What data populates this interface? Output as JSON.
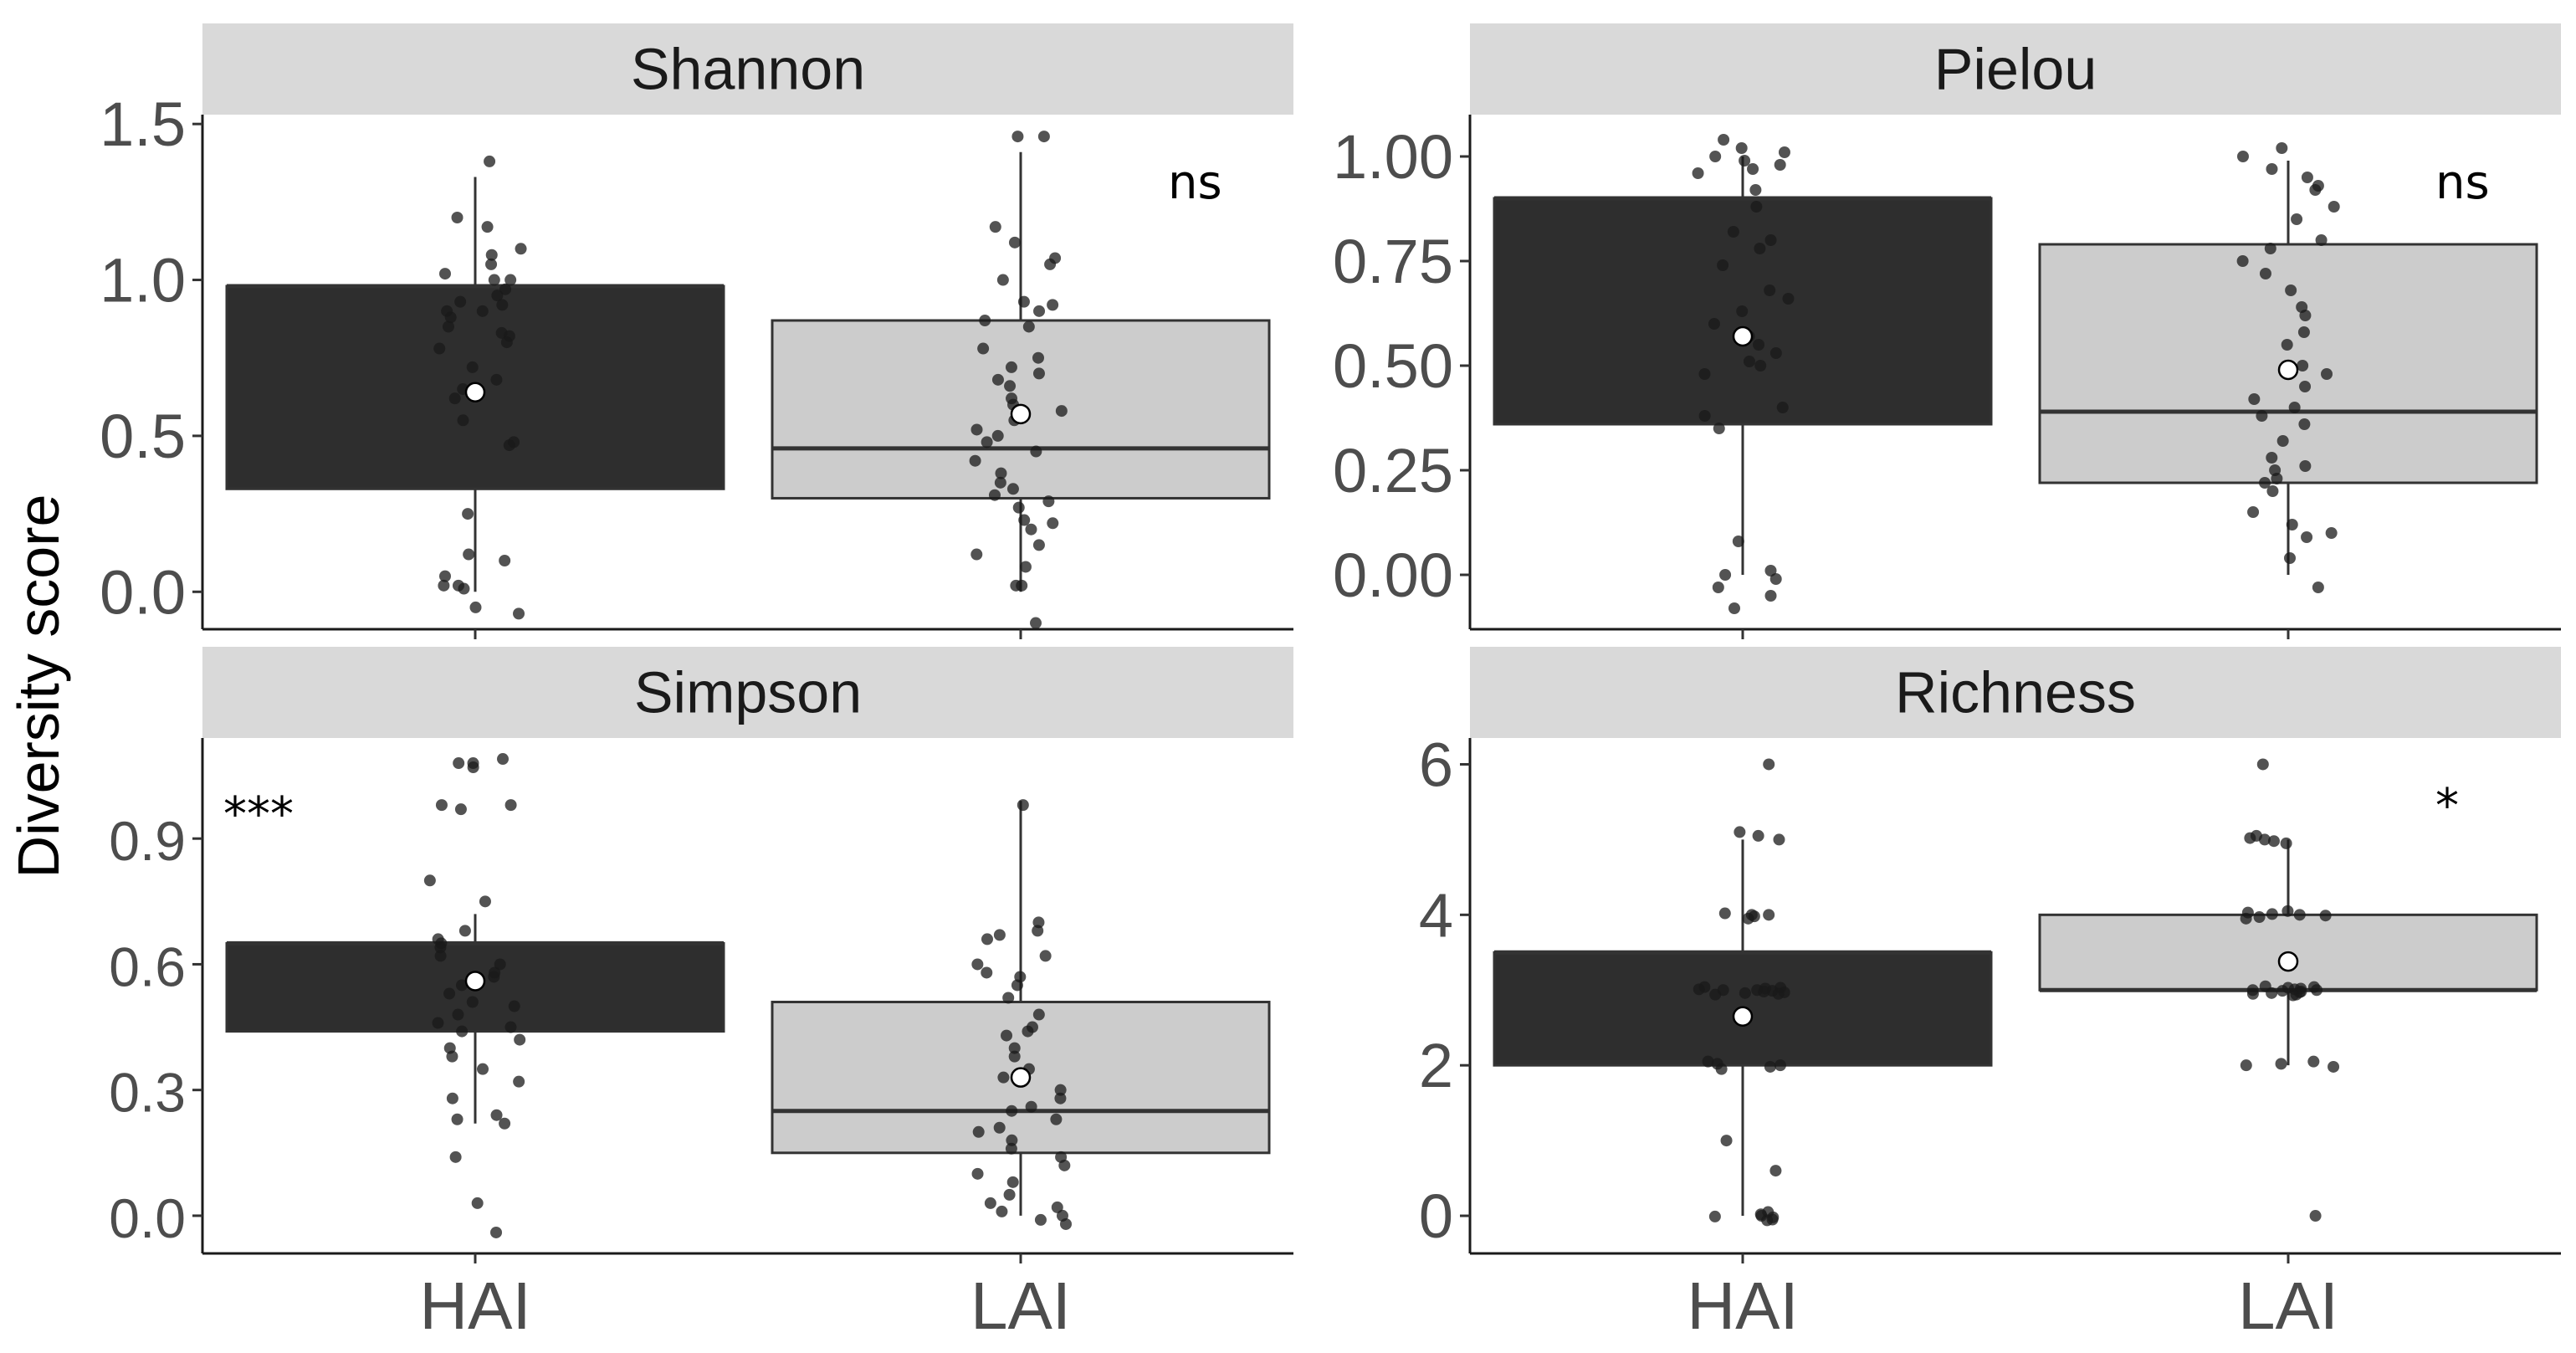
{
  "chart_data": {
    "type": "boxplot",
    "y_axis_title": "Diversity score",
    "groups": [
      "HAI",
      "LAI"
    ],
    "colors": {
      "HAI_fill": "#2e2e2e",
      "LAI_fill": "#cccccc",
      "strip_fill": "#d9d9d9",
      "point": "#1a1a1a",
      "mean_marker": "#ffffff",
      "axis_text": "#4d4d4d"
    },
    "panels": [
      {
        "title": "Shannon",
        "significance": "ns",
        "significance_position": "top-right",
        "ylim": [
          -0.12,
          1.53
        ],
        "ticks": [
          0.0,
          0.5,
          1.0,
          1.5
        ],
        "tick_labels": [
          "0.0",
          "0.5",
          "1.0",
          "1.5"
        ],
        "boxes": [
          {
            "group": "HAI",
            "q1": 0.33,
            "median": 0.98,
            "q3": 0.98,
            "whisker_low": 0.0,
            "whisker_high": 1.33,
            "mean": 0.64,
            "points": [
              1.38,
              1.2,
              1.17,
              1.1,
              1.08,
              1.05,
              1.02,
              1.0,
              1.0,
              0.97,
              0.95,
              0.93,
              0.92,
              0.9,
              0.9,
              0.88,
              0.85,
              0.83,
              0.82,
              0.8,
              0.78,
              0.72,
              0.68,
              0.65,
              0.62,
              0.55,
              0.48,
              0.47,
              0.25,
              0.12,
              0.1,
              0.05,
              0.02,
              0.02,
              0.01,
              -0.05,
              -0.07
            ]
          },
          {
            "group": "LAI",
            "q1": 0.3,
            "median": 0.46,
            "q3": 0.87,
            "whisker_low": 0.0,
            "whisker_high": 1.41,
            "mean": 0.57,
            "points": [
              1.46,
              1.46,
              1.17,
              1.12,
              1.07,
              1.05,
              1.0,
              0.93,
              0.92,
              0.9,
              0.87,
              0.85,
              0.78,
              0.75,
              0.72,
              0.7,
              0.68,
              0.66,
              0.62,
              0.6,
              0.58,
              0.55,
              0.52,
              0.5,
              0.48,
              0.45,
              0.42,
              0.38,
              0.35,
              0.33,
              0.31,
              0.29,
              0.27,
              0.23,
              0.22,
              0.2,
              0.15,
              0.12,
              0.08,
              0.02,
              0.02,
              -0.1
            ]
          }
        ]
      },
      {
        "title": "Pielou",
        "significance": "ns",
        "significance_position": "top-right",
        "ylim": [
          -0.13,
          1.1
        ],
        "ticks": [
          0.0,
          0.25,
          0.5,
          0.75,
          1.0
        ],
        "tick_labels": [
          "0.00",
          "0.25",
          "0.50",
          "0.75",
          "1.00"
        ],
        "boxes": [
          {
            "group": "HAI",
            "q1": 0.36,
            "median": 0.9,
            "q3": 0.9,
            "whisker_low": 0.0,
            "whisker_high": 1.0,
            "mean": 0.57,
            "points": [
              1.04,
              1.02,
              1.01,
              1.0,
              0.99,
              0.98,
              0.97,
              0.96,
              0.92,
              0.88,
              0.82,
              0.8,
              0.78,
              0.74,
              0.68,
              0.66,
              0.63,
              0.6,
              0.57,
              0.55,
              0.53,
              0.51,
              0.5,
              0.48,
              0.4,
              0.38,
              0.35,
              0.08,
              0.01,
              0.0,
              -0.01,
              -0.03,
              -0.05,
              -0.08
            ]
          },
          {
            "group": "LAI",
            "q1": 0.22,
            "median": 0.39,
            "q3": 0.79,
            "whisker_low": 0.0,
            "whisker_high": 0.99,
            "mean": 0.49,
            "points": [
              1.02,
              1.0,
              0.97,
              0.95,
              0.93,
              0.92,
              0.88,
              0.85,
              0.8,
              0.78,
              0.75,
              0.72,
              0.68,
              0.64,
              0.62,
              0.58,
              0.55,
              0.5,
              0.48,
              0.45,
              0.42,
              0.4,
              0.38,
              0.36,
              0.32,
              0.28,
              0.26,
              0.25,
              0.23,
              0.22,
              0.2,
              0.15,
              0.12,
              0.1,
              0.09,
              0.04,
              -0.03
            ]
          }
        ]
      },
      {
        "title": "Simpson",
        "significance": "***",
        "significance_position": "top-left",
        "ylim": [
          -0.09,
          1.14
        ],
        "ticks": [
          0.0,
          0.3,
          0.6,
          0.9
        ],
        "tick_labels": [
          "0.0",
          "0.3",
          "0.6",
          "0.9"
        ],
        "boxes": [
          {
            "group": "HAI",
            "q1": 0.44,
            "median": 0.65,
            "q3": 0.65,
            "whisker_low": 0.22,
            "whisker_high": 0.72,
            "mean": 0.56,
            "points": [
              1.09,
              1.08,
              1.08,
              1.07,
              0.98,
              0.98,
              0.97,
              0.8,
              0.75,
              0.68,
              0.66,
              0.65,
              0.64,
              0.62,
              0.6,
              0.58,
              0.57,
              0.55,
              0.53,
              0.51,
              0.5,
              0.48,
              0.46,
              0.45,
              0.44,
              0.42,
              0.4,
              0.38,
              0.35,
              0.32,
              0.28,
              0.24,
              0.23,
              0.22,
              0.14,
              0.03,
              -0.04
            ]
          },
          {
            "group": "LAI",
            "q1": 0.15,
            "median": 0.25,
            "q3": 0.51,
            "whisker_low": 0.0,
            "whisker_high": 0.99,
            "mean": 0.33,
            "points": [
              0.98,
              0.7,
              0.68,
              0.67,
              0.66,
              0.62,
              0.6,
              0.58,
              0.57,
              0.55,
              0.52,
              0.48,
              0.45,
              0.44,
              0.43,
              0.4,
              0.38,
              0.35,
              0.33,
              0.3,
              0.28,
              0.26,
              0.25,
              0.23,
              0.21,
              0.2,
              0.18,
              0.16,
              0.14,
              0.12,
              0.1,
              0.08,
              0.05,
              0.03,
              0.02,
              0.01,
              0.0,
              -0.01,
              -0.02
            ]
          }
        ]
      },
      {
        "title": "Richness",
        "significance": "*",
        "significance_position": "top-right",
        "ylim": [
          -0.5,
          6.35
        ],
        "ticks": [
          0,
          2,
          4,
          6
        ],
        "tick_labels": [
          "0",
          "2",
          "4",
          "6"
        ],
        "boxes": [
          {
            "group": "HAI",
            "q1": 2.0,
            "median": 3.5,
            "q3": 3.5,
            "whisker_low": 0.0,
            "whisker_high": 5.0,
            "mean": 2.65,
            "points": [
              6.0,
              5.1,
              5.05,
              5.0,
              4.02,
              4.0,
              4.0,
              3.98,
              3.95,
              3.04,
              3.03,
              3.02,
              3.01,
              3.0,
              3.0,
              2.99,
              2.98,
              2.97,
              2.96,
              2.95,
              2.94,
              2.05,
              2.02,
              2.0,
              1.98,
              1.95,
              1.0,
              0.6,
              0.05,
              0.02,
              0.0,
              -0.01,
              -0.02,
              -0.05,
              -0.06
            ]
          },
          {
            "group": "LAI",
            "q1": 3.0,
            "median": 3.0,
            "q3": 4.0,
            "whisker_low": 2.0,
            "whisker_high": 5.0,
            "mean": 3.38,
            "points": [
              6.0,
              5.05,
              5.02,
              5.0,
              4.98,
              4.95,
              4.05,
              4.03,
              4.01,
              4.0,
              3.99,
              3.97,
              3.95,
              3.05,
              3.04,
              3.03,
              3.02,
              3.01,
              3.0,
              3.0,
              2.99,
              2.98,
              2.97,
              2.96,
              2.95,
              2.94,
              2.93,
              2.05,
              2.02,
              2.0,
              1.98,
              0.0
            ]
          }
        ]
      }
    ]
  }
}
